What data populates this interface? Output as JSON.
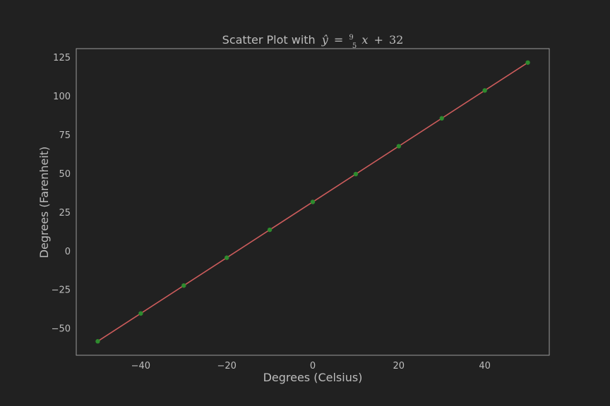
{
  "chart_data": {
    "type": "scatter",
    "title_text": "Scatter Plot with",
    "title_equation": {
      "y_hat": "ŷ",
      "equals": "=",
      "numerator": "9",
      "denominator": "5",
      "variable": "x",
      "plus": "+",
      "constant": "32"
    },
    "xlabel": "Degrees (Celsius)",
    "ylabel": "Degrees (Farenheit)",
    "xlim": [
      -55,
      55
    ],
    "ylim": [
      -67,
      131
    ],
    "xticks": [
      -40,
      -20,
      0,
      20,
      40
    ],
    "yticks": [
      -50,
      -25,
      0,
      25,
      50,
      75,
      100,
      125
    ],
    "xtick_labels": [
      "−40",
      "−20",
      "0",
      "20",
      "40"
    ],
    "ytick_labels": [
      "−50",
      "−25",
      "0",
      "25",
      "50",
      "75",
      "100",
      "125"
    ],
    "grid": false,
    "points": {
      "x": [
        -50,
        -40,
        -30,
        -20,
        -10,
        0,
        10,
        20,
        30,
        40,
        50
      ],
      "y": [
        -58,
        -40,
        -22,
        -4,
        14,
        32,
        50,
        68,
        86,
        104,
        122
      ]
    },
    "fit_line": {
      "x": [
        -50,
        50
      ],
      "y": [
        -58,
        122
      ]
    },
    "colors": {
      "background": "#212121",
      "axes_frame": "#9a9a9a",
      "text": "#bdbdbd",
      "point": "#2e8b2e",
      "line": "#cd5c5c"
    }
  }
}
